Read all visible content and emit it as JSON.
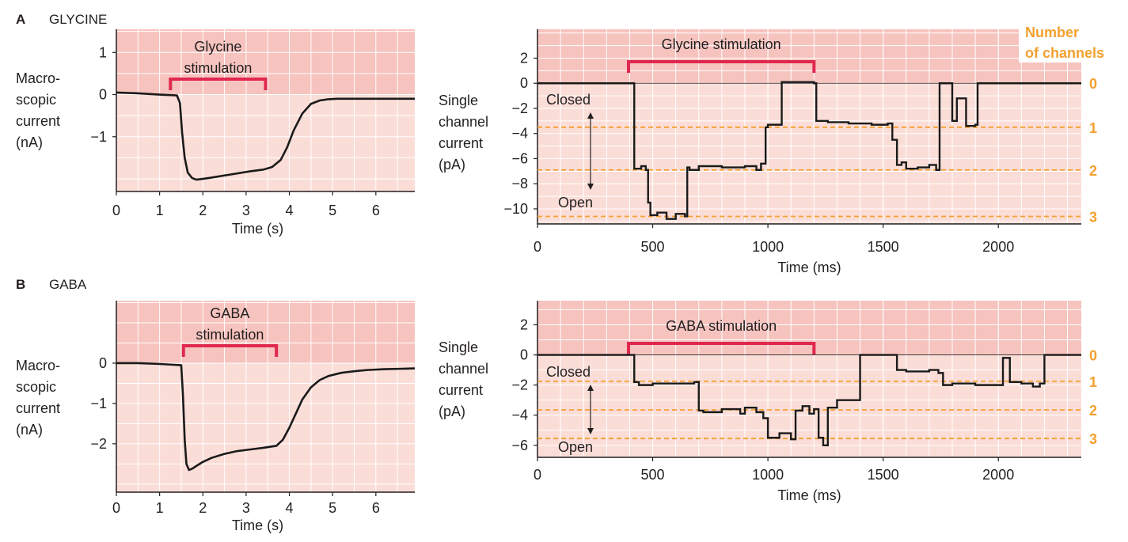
{
  "colors": {
    "stim_region": "#f6c3be",
    "plot_bg": "#fbddd7",
    "grid": "#ffffff",
    "trace": "#1a1a1a",
    "stim_bar": "#e0284f",
    "channel_line": "#f3a02e",
    "text": "#231f20"
  },
  "panels": {
    "A": {
      "letter": "A",
      "name": "GLYCINE"
    },
    "B": {
      "letter": "B",
      "name": "GABA"
    }
  },
  "labels": {
    "macro_ylabel": [
      "Macro-",
      "scopic",
      "current",
      "(nA)"
    ],
    "single_ylabel": [
      "Single",
      "channel",
      "current",
      "(pA)"
    ],
    "time_s": "Time (s)",
    "time_ms": "Time (ms)",
    "closed": "Closed",
    "open": "Open",
    "number_of_channels": [
      "Number",
      "of channels"
    ],
    "glycine_stim_macro": [
      "Glycine",
      "stimulation"
    ],
    "glycine_stim_single": "Glycine stimulation",
    "gaba_stim_macro": [
      "GABA",
      "stimulation"
    ],
    "gaba_stim_single": "GABA stimulation"
  },
  "chart_data": [
    {
      "id": "A-macroscopic",
      "type": "line",
      "title": "",
      "xlabel": "Time (s)",
      "ylabel": "Macroscopic current (nA)",
      "xlim": [
        0,
        6.9
      ],
      "ylim": [
        -2.3,
        1.55
      ],
      "x_ticks": [
        0,
        1,
        2,
        3,
        4,
        5,
        6
      ],
      "y_ticks": [
        1,
        0,
        -1
      ],
      "y_tick_labels": [
        "1",
        "0",
        "−1"
      ],
      "stimulation": {
        "label": "Glycine stimulation",
        "start": 1.25,
        "end": 3.45
      },
      "stim_region_ylim": [
        0,
        1.55
      ],
      "series": [
        {
          "x": [
            0,
            0.5,
            1.0,
            1.4,
            1.47,
            1.52,
            1.58,
            1.65,
            1.75,
            1.85,
            2.0,
            2.2,
            2.5,
            2.8,
            3.1,
            3.4,
            3.6,
            3.8,
            3.95,
            4.1,
            4.3,
            4.5,
            4.7,
            4.9,
            5.1,
            5.4,
            5.8,
            6.2,
            6.9
          ],
          "y": [
            0.05,
            0.03,
            0.0,
            -0.02,
            -0.2,
            -0.9,
            -1.5,
            -1.85,
            -1.98,
            -2.02,
            -2.0,
            -1.97,
            -1.92,
            -1.87,
            -1.82,
            -1.78,
            -1.72,
            -1.55,
            -1.25,
            -0.85,
            -0.45,
            -0.22,
            -0.14,
            -0.11,
            -0.1,
            -0.1,
            -0.1,
            -0.1,
            -0.1
          ]
        }
      ]
    },
    {
      "id": "A-single-channel",
      "type": "line",
      "title": "",
      "xlabel": "Time (ms)",
      "ylabel": "Single channel current (pA)",
      "xlim": [
        0,
        2360
      ],
      "ylim": [
        -11.2,
        4.3
      ],
      "x_ticks": [
        0,
        500,
        1000,
        1500,
        2000
      ],
      "y_ticks": [
        2,
        0,
        -2,
        -4,
        -6,
        -8,
        -10
      ],
      "y_tick_labels": [
        "2",
        "0",
        "−2",
        "−4",
        "−6",
        "−8",
        "−10"
      ],
      "stimulation": {
        "label": "Glycine stimulation",
        "start": 395,
        "end": 1200
      },
      "stim_region_ylim": [
        0,
        4.3
      ],
      "channel_levels": [
        {
          "n": "0",
          "y": 0
        },
        {
          "n": "1",
          "y": -3.5
        },
        {
          "n": "2",
          "y": -6.9
        },
        {
          "n": "3",
          "y": -10.6
        }
      ],
      "series": [
        {
          "x": [
            0,
            395,
            400,
            420,
            450,
            470,
            480,
            490,
            520,
            560,
            600,
            640,
            650,
            660,
            700,
            800,
            900,
            950,
            970,
            990,
            1000,
            1040,
            1060,
            1100,
            1150,
            1200,
            1210,
            1260,
            1350,
            1450,
            1520,
            1540,
            1560,
            1580,
            1600,
            1650,
            1700,
            1730,
            1745,
            1760,
            1800,
            1820,
            1860,
            1900,
            1910,
            2000,
            2100,
            2200,
            2360
          ],
          "y": [
            0,
            0,
            0,
            -6.8,
            -6.6,
            -6.9,
            -9.5,
            -10.5,
            -10.3,
            -10.8,
            -10.4,
            -10.6,
            -6.7,
            -6.9,
            -6.6,
            -6.7,
            -6.6,
            -6.9,
            -6.4,
            -3.5,
            -3.3,
            -3.3,
            0.1,
            0.1,
            0.1,
            0,
            -3.0,
            -3.1,
            -3.2,
            -3.3,
            -3.2,
            -4.5,
            -6.5,
            -6.3,
            -6.8,
            -6.7,
            -6.5,
            -6.9,
            0,
            0,
            -3.0,
            -1.2,
            -3.4,
            -3.3,
            0,
            0,
            0,
            0,
            0
          ]
        }
      ]
    },
    {
      "id": "B-macroscopic",
      "type": "line",
      "title": "",
      "xlabel": "Time (s)",
      "ylabel": "Macroscopic current (nA)",
      "xlim": [
        0,
        6.9
      ],
      "ylim": [
        -3.2,
        1.55
      ],
      "x_ticks": [
        0,
        1,
        2,
        3,
        4,
        5,
        6
      ],
      "y_ticks": [
        0,
        -1,
        -2
      ],
      "y_tick_labels": [
        "0",
        "−1",
        "−2"
      ],
      "stimulation": {
        "label": "GABA stimulation",
        "start": 1.55,
        "end": 3.7
      },
      "stim_region_ylim": [
        0,
        1.55
      ],
      "series": [
        {
          "x": [
            0,
            0.5,
            1.0,
            1.5,
            1.54,
            1.58,
            1.62,
            1.68,
            1.75,
            1.85,
            2.0,
            2.2,
            2.5,
            2.8,
            3.1,
            3.4,
            3.7,
            3.85,
            4.0,
            4.15,
            4.3,
            4.5,
            4.7,
            4.9,
            5.2,
            5.5,
            5.8,
            6.2,
            6.9
          ],
          "y": [
            0.0,
            0.0,
            -0.02,
            -0.05,
            -0.8,
            -1.9,
            -2.5,
            -2.65,
            -2.62,
            -2.55,
            -2.45,
            -2.35,
            -2.25,
            -2.18,
            -2.14,
            -2.1,
            -2.05,
            -1.9,
            -1.6,
            -1.25,
            -0.9,
            -0.6,
            -0.42,
            -0.32,
            -0.24,
            -0.2,
            -0.17,
            -0.15,
            -0.13
          ]
        }
      ]
    },
    {
      "id": "B-single-channel",
      "type": "line",
      "title": "",
      "xlabel": "Time (ms)",
      "ylabel": "Single channel current (pA)",
      "xlim": [
        0,
        2360
      ],
      "ylim": [
        -6.8,
        3.6
      ],
      "x_ticks": [
        0,
        500,
        1000,
        1500,
        2000
      ],
      "y_ticks": [
        2,
        0,
        -2,
        -4,
        -6
      ],
      "y_tick_labels": [
        "2",
        "0",
        "−2",
        "−4",
        "−6"
      ],
      "stimulation": {
        "label": "GABA stimulation",
        "start": 395,
        "end": 1200
      },
      "stim_region_ylim": [
        0,
        3.6
      ],
      "channel_levels": [
        {
          "n": "0",
          "y": 0
        },
        {
          "n": "1",
          "y": -1.75
        },
        {
          "n": "2",
          "y": -3.65
        },
        {
          "n": "3",
          "y": -5.55
        }
      ],
      "series": [
        {
          "x": [
            0,
            395,
            400,
            420,
            440,
            500,
            600,
            680,
            700,
            720,
            800,
            880,
            900,
            950,
            980,
            1000,
            1050,
            1100,
            1120,
            1150,
            1180,
            1200,
            1220,
            1240,
            1260,
            1300,
            1380,
            1400,
            1500,
            1540,
            1560,
            1600,
            1700,
            1740,
            1760,
            1800,
            1850,
            1900,
            2000,
            2020,
            2050,
            2100,
            2150,
            2180,
            2200,
            2360
          ],
          "y": [
            0,
            0,
            0,
            -1.8,
            -2.0,
            -1.9,
            -1.9,
            -1.8,
            -3.7,
            -3.8,
            -3.6,
            -3.9,
            -3.5,
            -3.8,
            -4.2,
            -5.5,
            -5.2,
            -5.6,
            -3.7,
            -3.4,
            -3.9,
            -3.6,
            -5.5,
            -6.0,
            -3.5,
            -3.0,
            -3.0,
            0,
            0,
            0,
            -1.0,
            -1.1,
            -1.0,
            -1.2,
            -2.0,
            -1.9,
            -1.9,
            -2.0,
            -2.0,
            -0.2,
            -1.8,
            -1.9,
            -2.1,
            -1.9,
            0,
            0
          ]
        }
      ]
    }
  ]
}
